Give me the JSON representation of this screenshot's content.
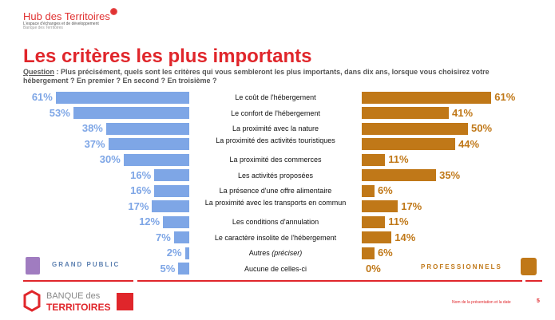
{
  "header": {
    "brand": "Hub des Territoires",
    "brand_sub": "L'espace d'échanges et de développement",
    "brand_sub2": "Banque des Territoires"
  },
  "title": "Les critères les plus importants",
  "question": {
    "label": "Question",
    "text": " : Plus précisément, quels sont les critères qui vous sembleront les plus importants, dans dix ans, lorsque vous choisirez votre hébergement ? En premier ? En second ? En troisième ?"
  },
  "colors": {
    "grand_public": "#7ea6e6",
    "professionnels": "#c07818",
    "accent": "#e0262b"
  },
  "chart_data": [
    {
      "type": "bar",
      "orientation": "horizontal",
      "name": "GRAND PUBLIC",
      "unit": "%",
      "categories": [
        "Le coût de l'hébergement",
        "Le confort de l'hébergement",
        "La proximité avec la nature",
        "La proximité des activités touristiques",
        "La proximité des commerces",
        "Les activités proposées",
        "La présence d'une offre alimentaire",
        "La proximité avec les transports en commun",
        "Les conditions d'annulation",
        "Le caractère insolite de l'hébergement",
        "Autres (préciser)",
        "Aucune de celles-ci"
      ],
      "values": [
        61,
        53,
        38,
        37,
        30,
        16,
        16,
        17,
        12,
        7,
        2,
        5
      ],
      "labels": [
        "61%",
        "53%",
        "38%",
        "37%",
        "30%",
        "16%",
        "16%",
        "17%",
        "12%",
        "7%",
        "2%",
        "5%"
      ]
    },
    {
      "type": "bar",
      "orientation": "horizontal",
      "name": "PROFESSIONNELS",
      "unit": "%",
      "values": [
        61,
        41,
        50,
        44,
        11,
        35,
        6,
        17,
        11,
        14,
        6,
        0
      ],
      "labels": [
        "61%",
        "41%",
        "50%",
        "44%",
        "11%",
        "35%",
        "6%",
        "17%",
        "11%",
        "14%",
        "6%",
        "0%"
      ]
    }
  ],
  "legend": {
    "left": "GRAND PUBLIC",
    "right": "PROFESSIONNELS",
    "left_icon": "people-grid-icon",
    "right_icon": "professionals-icon"
  },
  "footer": {
    "logo_top": "BANQUE des",
    "logo_bottom": "TERRITOIRES",
    "note": "Nom de la présentation et la date",
    "page": "5"
  }
}
